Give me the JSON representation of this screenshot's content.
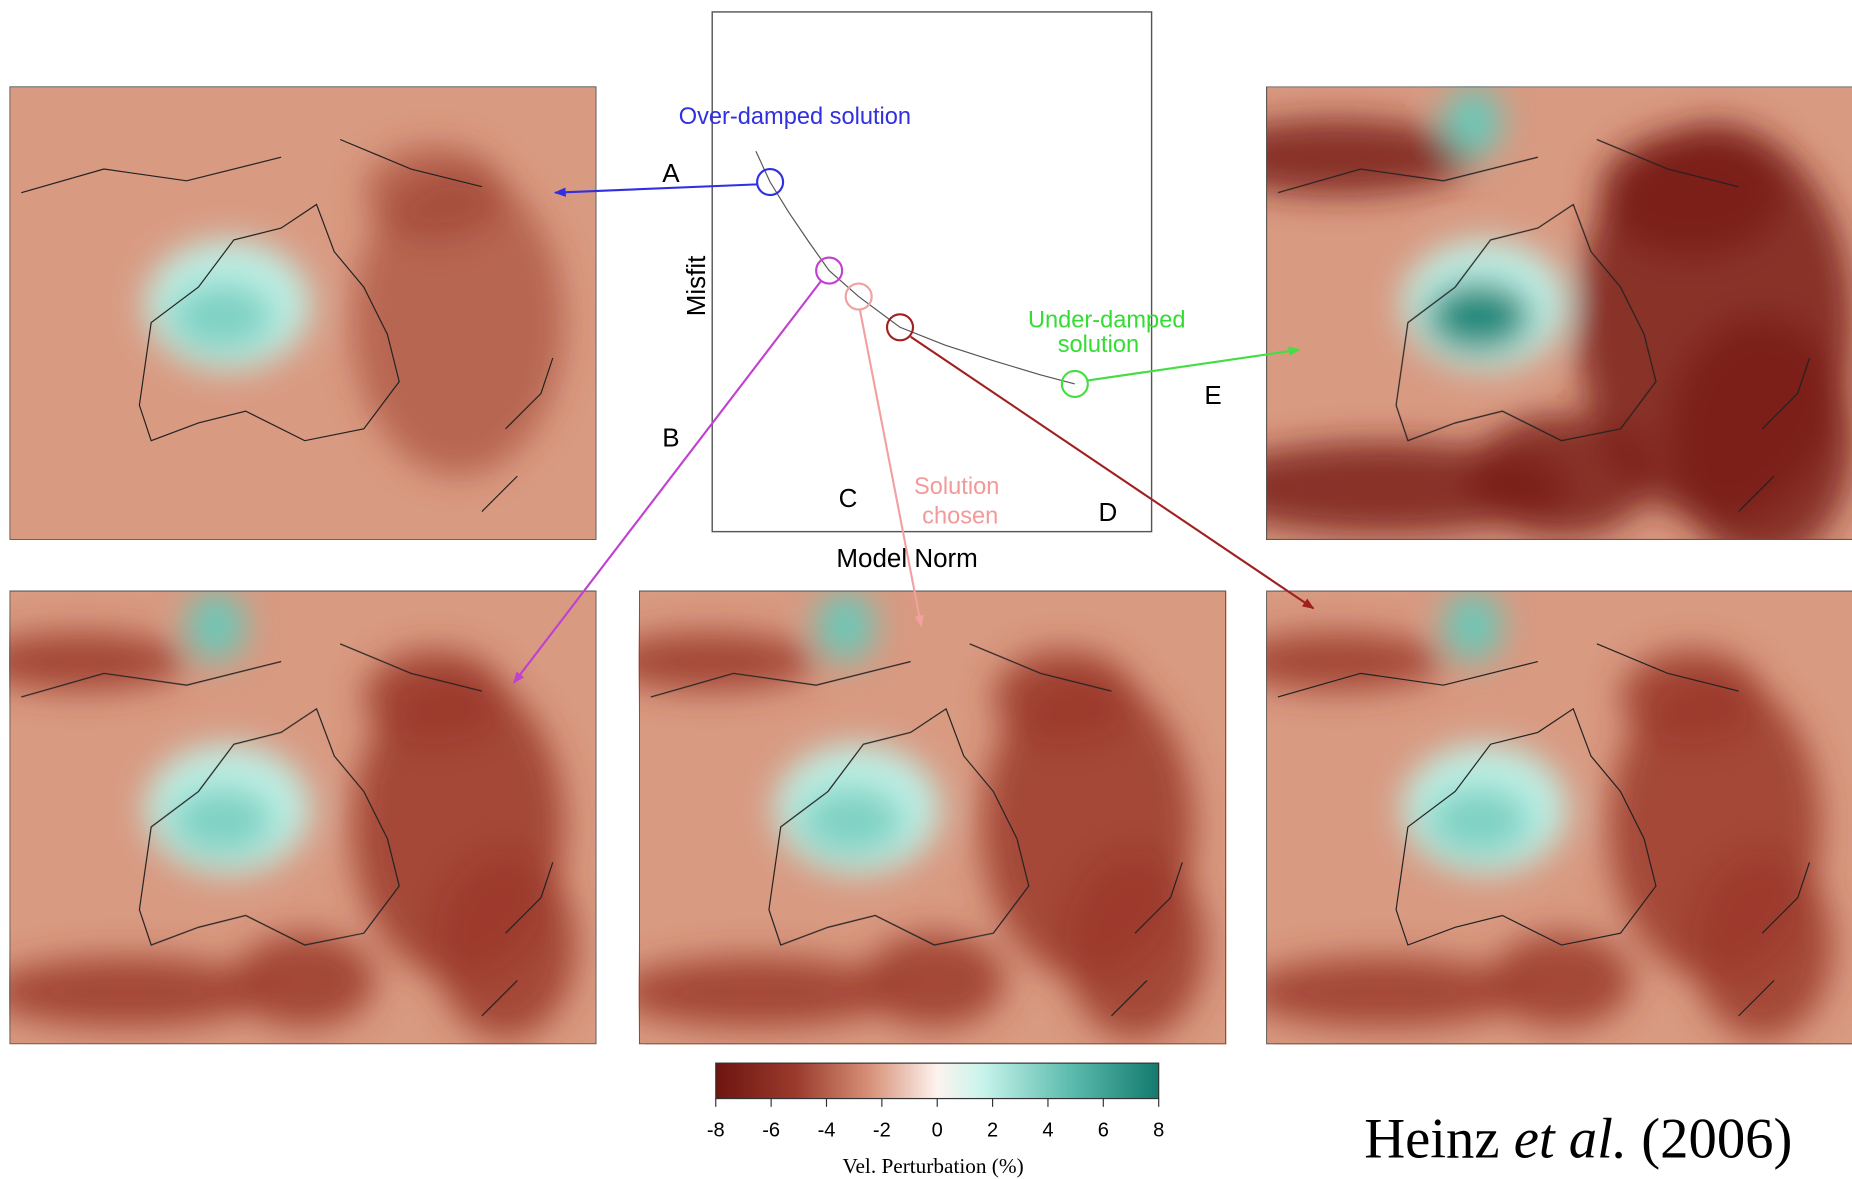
{
  "lcurve": {
    "y_label": "Misfit",
    "x_label": "Model Norm",
    "over_damped": "Over-damped solution",
    "under_damped": [
      "Under-damped",
      "solution"
    ],
    "chosen": [
      "Solution",
      "chosen"
    ],
    "point_labels": [
      "A",
      "B",
      "C",
      "D",
      "E"
    ]
  },
  "colorbar": {
    "ticks": [
      -8,
      -6,
      -4,
      -2,
      0,
      2,
      4,
      6,
      8
    ],
    "label": "Vel. Perturbation (%)"
  },
  "citation": {
    "author": "Heinz",
    "etal": "et al.",
    "year": "(2006)"
  }
}
